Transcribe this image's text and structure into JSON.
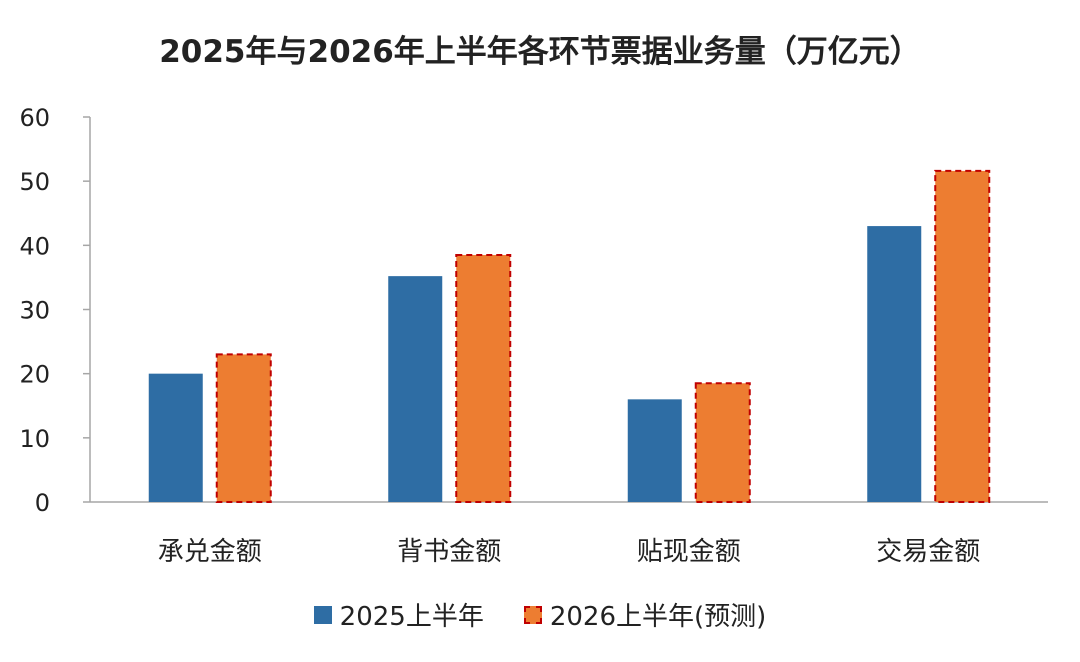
{
  "chart_data": {
    "type": "bar",
    "title": "2025年与2026年上半年各环节票据业务量（万亿元）",
    "categories": [
      "承兑金额",
      "背书金额",
      "贴现金额",
      "交易金额"
    ],
    "series": [
      {
        "name": "2025上半年",
        "values": [
          20,
          35.2,
          16,
          43
        ],
        "color": "#2E6DA4"
      },
      {
        "name": "2026上半年(预测)",
        "values": [
          23,
          38.5,
          18.5,
          51.6
        ],
        "color": "#ED7D31",
        "border": "#C00000",
        "border_style": "dashed"
      }
    ],
    "ylim": [
      0,
      60
    ],
    "yticks": [
      0,
      10,
      20,
      30,
      40,
      50,
      60
    ],
    "grid": false,
    "legend": "bottom"
  }
}
